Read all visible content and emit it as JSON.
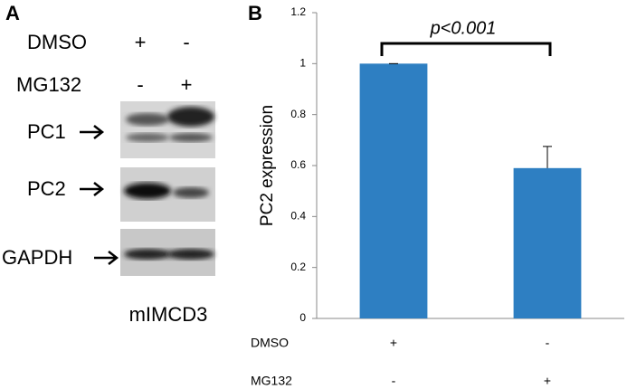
{
  "panel_a": {
    "panel_label": "A",
    "treatments": [
      {
        "name": "DMSO",
        "labels": [
          "+",
          "-"
        ]
      },
      {
        "name": "MG132",
        "labels": [
          "-",
          "+"
        ]
      }
    ],
    "blots": [
      "PC1",
      "PC2",
      "GAPDH"
    ],
    "cell_line": "mIMCD3"
  },
  "chart_data": {
    "type": "bar",
    "panel_label": "B",
    "ylabel": "PC2 expression",
    "annotation": "p<0.001",
    "categories": [
      null,
      null
    ],
    "values": [
      1,
      0.59
    ],
    "errors": [
      0,
      0.085
    ],
    "color": "#2e7fc2",
    "ylim": [
      0,
      1.2
    ],
    "yticks": [
      0,
      0.2,
      0.4,
      0.6,
      0.8,
      1,
      1.2
    ],
    "grid": false,
    "treatments": [
      {
        "name": "DMSO",
        "labels": [
          "+",
          "-"
        ]
      },
      {
        "name": "MG132",
        "labels": [
          "-",
          "+"
        ]
      }
    ]
  }
}
